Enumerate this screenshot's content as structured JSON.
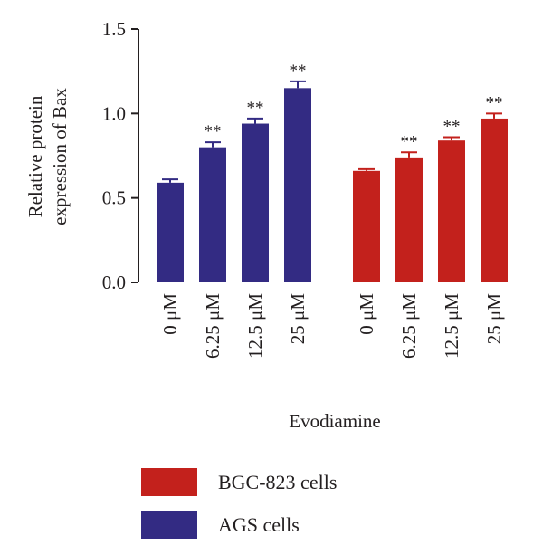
{
  "chart_data": {
    "type": "bar",
    "ylabel_lines": [
      "Relative protein",
      "expression of Bax"
    ],
    "xlabel": "Evodiamine",
    "ylim": [
      0,
      1.5
    ],
    "yticks": [
      "0.0",
      "0.5",
      "1.0",
      "1.5"
    ],
    "categories": [
      "0 μM",
      "6.25 μM",
      "12.5 μM",
      "25 μM"
    ],
    "significance_mark": "**",
    "series": [
      {
        "name": "AGS cells",
        "color": "#332b83",
        "values": [
          0.59,
          0.8,
          0.94,
          1.15
        ],
        "errors": [
          0.02,
          0.03,
          0.03,
          0.04
        ],
        "significant": [
          false,
          true,
          true,
          true
        ]
      },
      {
        "name": "BGC-823 cells",
        "color": "#c3211c",
        "values": [
          0.66,
          0.74,
          0.84,
          0.97
        ],
        "errors": [
          0.01,
          0.03,
          0.02,
          0.03
        ],
        "significant": [
          false,
          true,
          true,
          true
        ]
      }
    ],
    "legend": {
      "placement": "bottom",
      "order": [
        "BGC-823 cells",
        "AGS cells"
      ]
    },
    "grid": false
  }
}
